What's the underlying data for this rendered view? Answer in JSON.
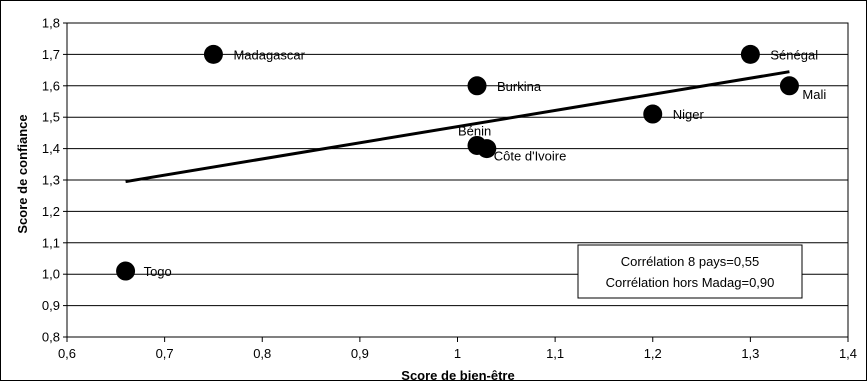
{
  "chart_data": {
    "type": "scatter",
    "xlabel": "Score de bien-être",
    "ylabel": "Score de confiance",
    "xlim": [
      0.6,
      1.4
    ],
    "ylim": [
      0.8,
      1.8
    ],
    "x_ticks": [
      "0,6",
      "0,7",
      "0,8",
      "0,9",
      "1",
      "1,1",
      "1,2",
      "1,3",
      "1,4"
    ],
    "y_ticks": [
      "0,8",
      "0,9",
      "1,0",
      "1,1",
      "1,2",
      "1,3",
      "1,4",
      "1,5",
      "1,6",
      "1,7",
      "1,8"
    ],
    "grid": "horizontal",
    "points": [
      {
        "label": "Madagascar",
        "x": 0.75,
        "y": 1.7
      },
      {
        "label": "Burkina",
        "x": 1.02,
        "y": 1.6
      },
      {
        "label": "Sénégal",
        "x": 1.3,
        "y": 1.7
      },
      {
        "label": "Mali",
        "x": 1.34,
        "y": 1.6
      },
      {
        "label": "Niger",
        "x": 1.2,
        "y": 1.51
      },
      {
        "label": "Bénin",
        "x": 1.02,
        "y": 1.41
      },
      {
        "label": "Côte d'Ivoire",
        "x": 1.03,
        "y": 1.4
      },
      {
        "label": "Togo",
        "x": 0.66,
        "y": 1.01
      }
    ],
    "trendline": {
      "x": [
        0.66,
        1.34
      ],
      "y": [
        1.295,
        1.645
      ]
    },
    "annotation": [
      "Corrélation 8 pays=0,55",
      "Corrélation hors Madag=0,90"
    ]
  }
}
